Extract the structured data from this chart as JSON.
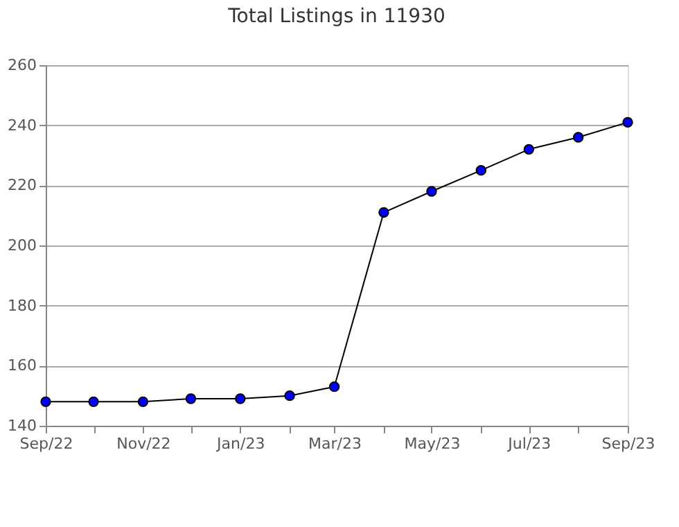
{
  "chart_data": {
    "type": "line",
    "title": "Total Listings in 11930",
    "x": [
      "2022-09",
      "2022-10",
      "2022-11",
      "2022-12",
      "2023-01",
      "2023-02",
      "2023-03",
      "2023-04",
      "2023-05",
      "2023-06",
      "2023-07",
      "2023-08",
      "2023-09"
    ],
    "series": [
      {
        "color": "#0000ff",
        "values": [
          148,
          148,
          148,
          149,
          149,
          150,
          153,
          211,
          218,
          225,
          232,
          236,
          241
        ]
      }
    ],
    "xlim": [
      "2022-09",
      "2023-09"
    ],
    "xticks": [
      {
        "value": "2022-09",
        "label": "Sep/22"
      },
      {
        "value": "2022-10",
        "label": null
      },
      {
        "value": "2022-11",
        "label": "Nov/22"
      },
      {
        "value": "2022-12",
        "label": null
      },
      {
        "value": "2023-01",
        "label": "Jan/23"
      },
      {
        "value": "2023-02",
        "label": null
      },
      {
        "value": "2023-03",
        "label": "Mar/23"
      },
      {
        "value": "2023-04",
        "label": null
      },
      {
        "value": "2023-05",
        "label": "May/23"
      },
      {
        "value": "2023-06",
        "label": null
      },
      {
        "value": "2023-07",
        "label": "Jul/23"
      },
      {
        "value": "2023-08",
        "label": null
      },
      {
        "value": "2023-09",
        "label": "Sep/23"
      }
    ],
    "ylim": [
      140,
      260
    ],
    "yticks": [
      140,
      160,
      180,
      200,
      220,
      240,
      260
    ],
    "grid": "y",
    "marker": "circle",
    "line_style": "solid"
  }
}
